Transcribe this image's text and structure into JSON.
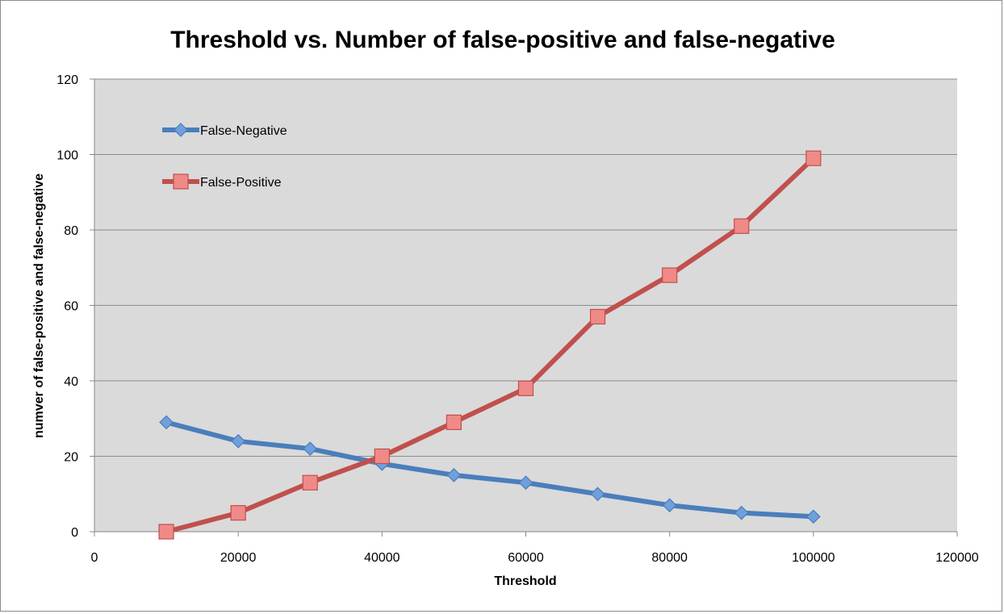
{
  "chart_data": {
    "type": "line",
    "title": "Threshold vs. Number of false-positive and false-negative",
    "xlabel": "Threshold",
    "ylabel": "numver of false-positive and false-negative",
    "xlim": [
      0,
      120000
    ],
    "ylim": [
      0,
      120
    ],
    "xticks": [
      0,
      20000,
      40000,
      60000,
      80000,
      100000,
      120000
    ],
    "yticks": [
      0,
      20,
      40,
      60,
      80,
      100,
      120
    ],
    "grid": true,
    "legend_position": "top-left inside plot",
    "x": [
      10000,
      20000,
      30000,
      40000,
      50000,
      60000,
      70000,
      80000,
      90000,
      100000
    ],
    "series": [
      {
        "name": "False-Negative",
        "color": "#4a7ebb",
        "marker_fill": "#6fa0dc",
        "marker": "diamond",
        "values": [
          29,
          24,
          22,
          18,
          15,
          13,
          10,
          7,
          5,
          4
        ]
      },
      {
        "name": "False-Positive",
        "color": "#c0504d",
        "marker_fill": "#f08a88",
        "marker": "square",
        "values": [
          0,
          5,
          13,
          20,
          29,
          38,
          57,
          68,
          81,
          99
        ]
      }
    ]
  }
}
